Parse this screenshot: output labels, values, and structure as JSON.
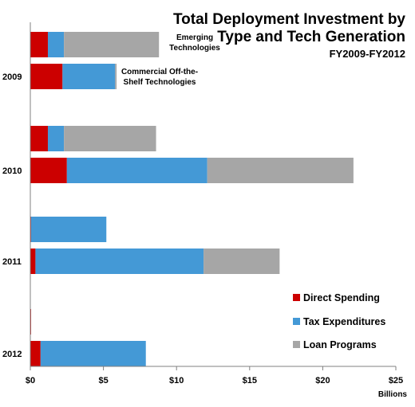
{
  "chart_data": {
    "type": "bar",
    "orientation": "horizontal",
    "stacked": true,
    "title": "Total Deployment Investment by Type and Tech Generation",
    "title_lines": [
      "Total Deployment Investment by",
      "Type and Tech Generation"
    ],
    "subtitle": "FY2009-FY2012",
    "xlabel": "Billions",
    "xlim": [
      0,
      25
    ],
    "xticks": [
      "$0",
      "$5",
      "$10",
      "$15",
      "$20",
      "$25"
    ],
    "grid": false,
    "legend_position": "bottom-right",
    "categories": [
      "2009",
      "2010",
      "2011",
      "2012"
    ],
    "subgroups": [
      "Emerging Technologies",
      "Commercial Off-the-Shelf Technologies"
    ],
    "colors": {
      "direct": "#cc0000",
      "tax": "#4499d6",
      "loan": "#a6a6a6"
    },
    "series": [
      {
        "name": "Direct Spending",
        "key": "direct",
        "values": {
          "emerging": [
            1.2,
            1.2,
            0.05,
            0.05
          ],
          "cots": [
            2.2,
            2.5,
            0.35,
            0.7
          ]
        }
      },
      {
        "name": "Tax Expenditures",
        "key": "tax",
        "values": {
          "emerging": [
            1.1,
            1.1,
            5.15,
            0
          ],
          "cots": [
            3.6,
            9.6,
            11.5,
            7.2
          ]
        }
      },
      {
        "name": "Loan Programs",
        "key": "loan",
        "values": {
          "emerging": [
            6.5,
            6.3,
            0,
            0
          ],
          "cots": [
            0.1,
            10.0,
            5.2,
            0
          ]
        }
      }
    ],
    "annotations": [
      {
        "lines": [
          "Emerging",
          "Technologies"
        ]
      },
      {
        "lines": [
          "Commercial Off-the-",
          "Shelf Technologies"
        ]
      }
    ]
  }
}
